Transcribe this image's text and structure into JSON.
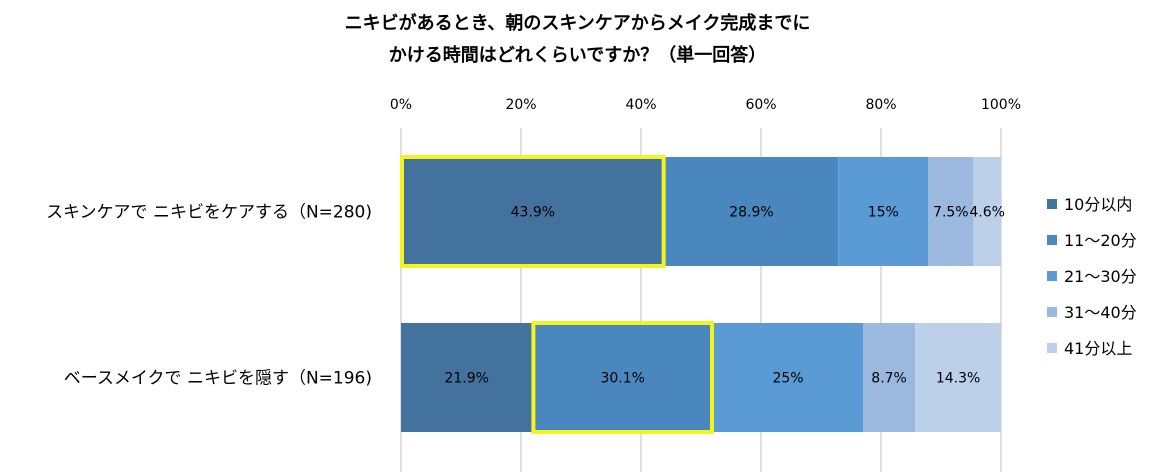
{
  "title_lines": [
    "ニキビがあるとき、朝のスキンケアからメイク完成までに",
    "かける時間はどれくらいですか？（単一回答）"
  ],
  "colors": {
    "series": [
      "#44729f",
      "#4b87bf",
      "#5b9bd5",
      "#9bb8de",
      "#bdd0ea"
    ],
    "highlight": "#f3f320",
    "grid": "#bfbfbf"
  },
  "chart_data": {
    "type": "bar",
    "orientation": "horizontal",
    "stacked": true,
    "percent_stacked": true,
    "title": "ニキビがあるとき、朝のスキンケアからメイク完成までにかける時間はどれくらいですか？（単一回答）",
    "categories": [
      "スキンケアで ニキビをケアする（N=280)",
      "ベースメイクで ニキビを隠す（N=196)"
    ],
    "series": [
      {
        "name": "10分以内",
        "values": [
          43.9,
          21.9
        ],
        "labels": [
          "43.9%",
          "21.9%"
        ]
      },
      {
        "name": "11～20分",
        "values": [
          28.9,
          30.1
        ],
        "labels": [
          "28.9%",
          "30.1%"
        ]
      },
      {
        "name": "21～30分",
        "values": [
          15,
          25
        ],
        "labels": [
          "15%",
          "25%"
        ]
      },
      {
        "name": "31～40分",
        "values": [
          7.5,
          8.7
        ],
        "labels": [
          "7.5%",
          "8.7%"
        ]
      },
      {
        "name": "41分以上",
        "values": [
          4.6,
          14.3
        ],
        "labels": [
          "4.6%",
          "14.3%"
        ]
      }
    ],
    "xlim": [
      0,
      100
    ],
    "xticks": [
      "0%",
      "20%",
      "40%",
      "60%",
      "80%",
      "100%"
    ],
    "grid": true,
    "legend_position": "right",
    "highlighted": [
      {
        "category_index": 0,
        "series_index": 0
      },
      {
        "category_index": 1,
        "series_index": 1
      }
    ]
  }
}
